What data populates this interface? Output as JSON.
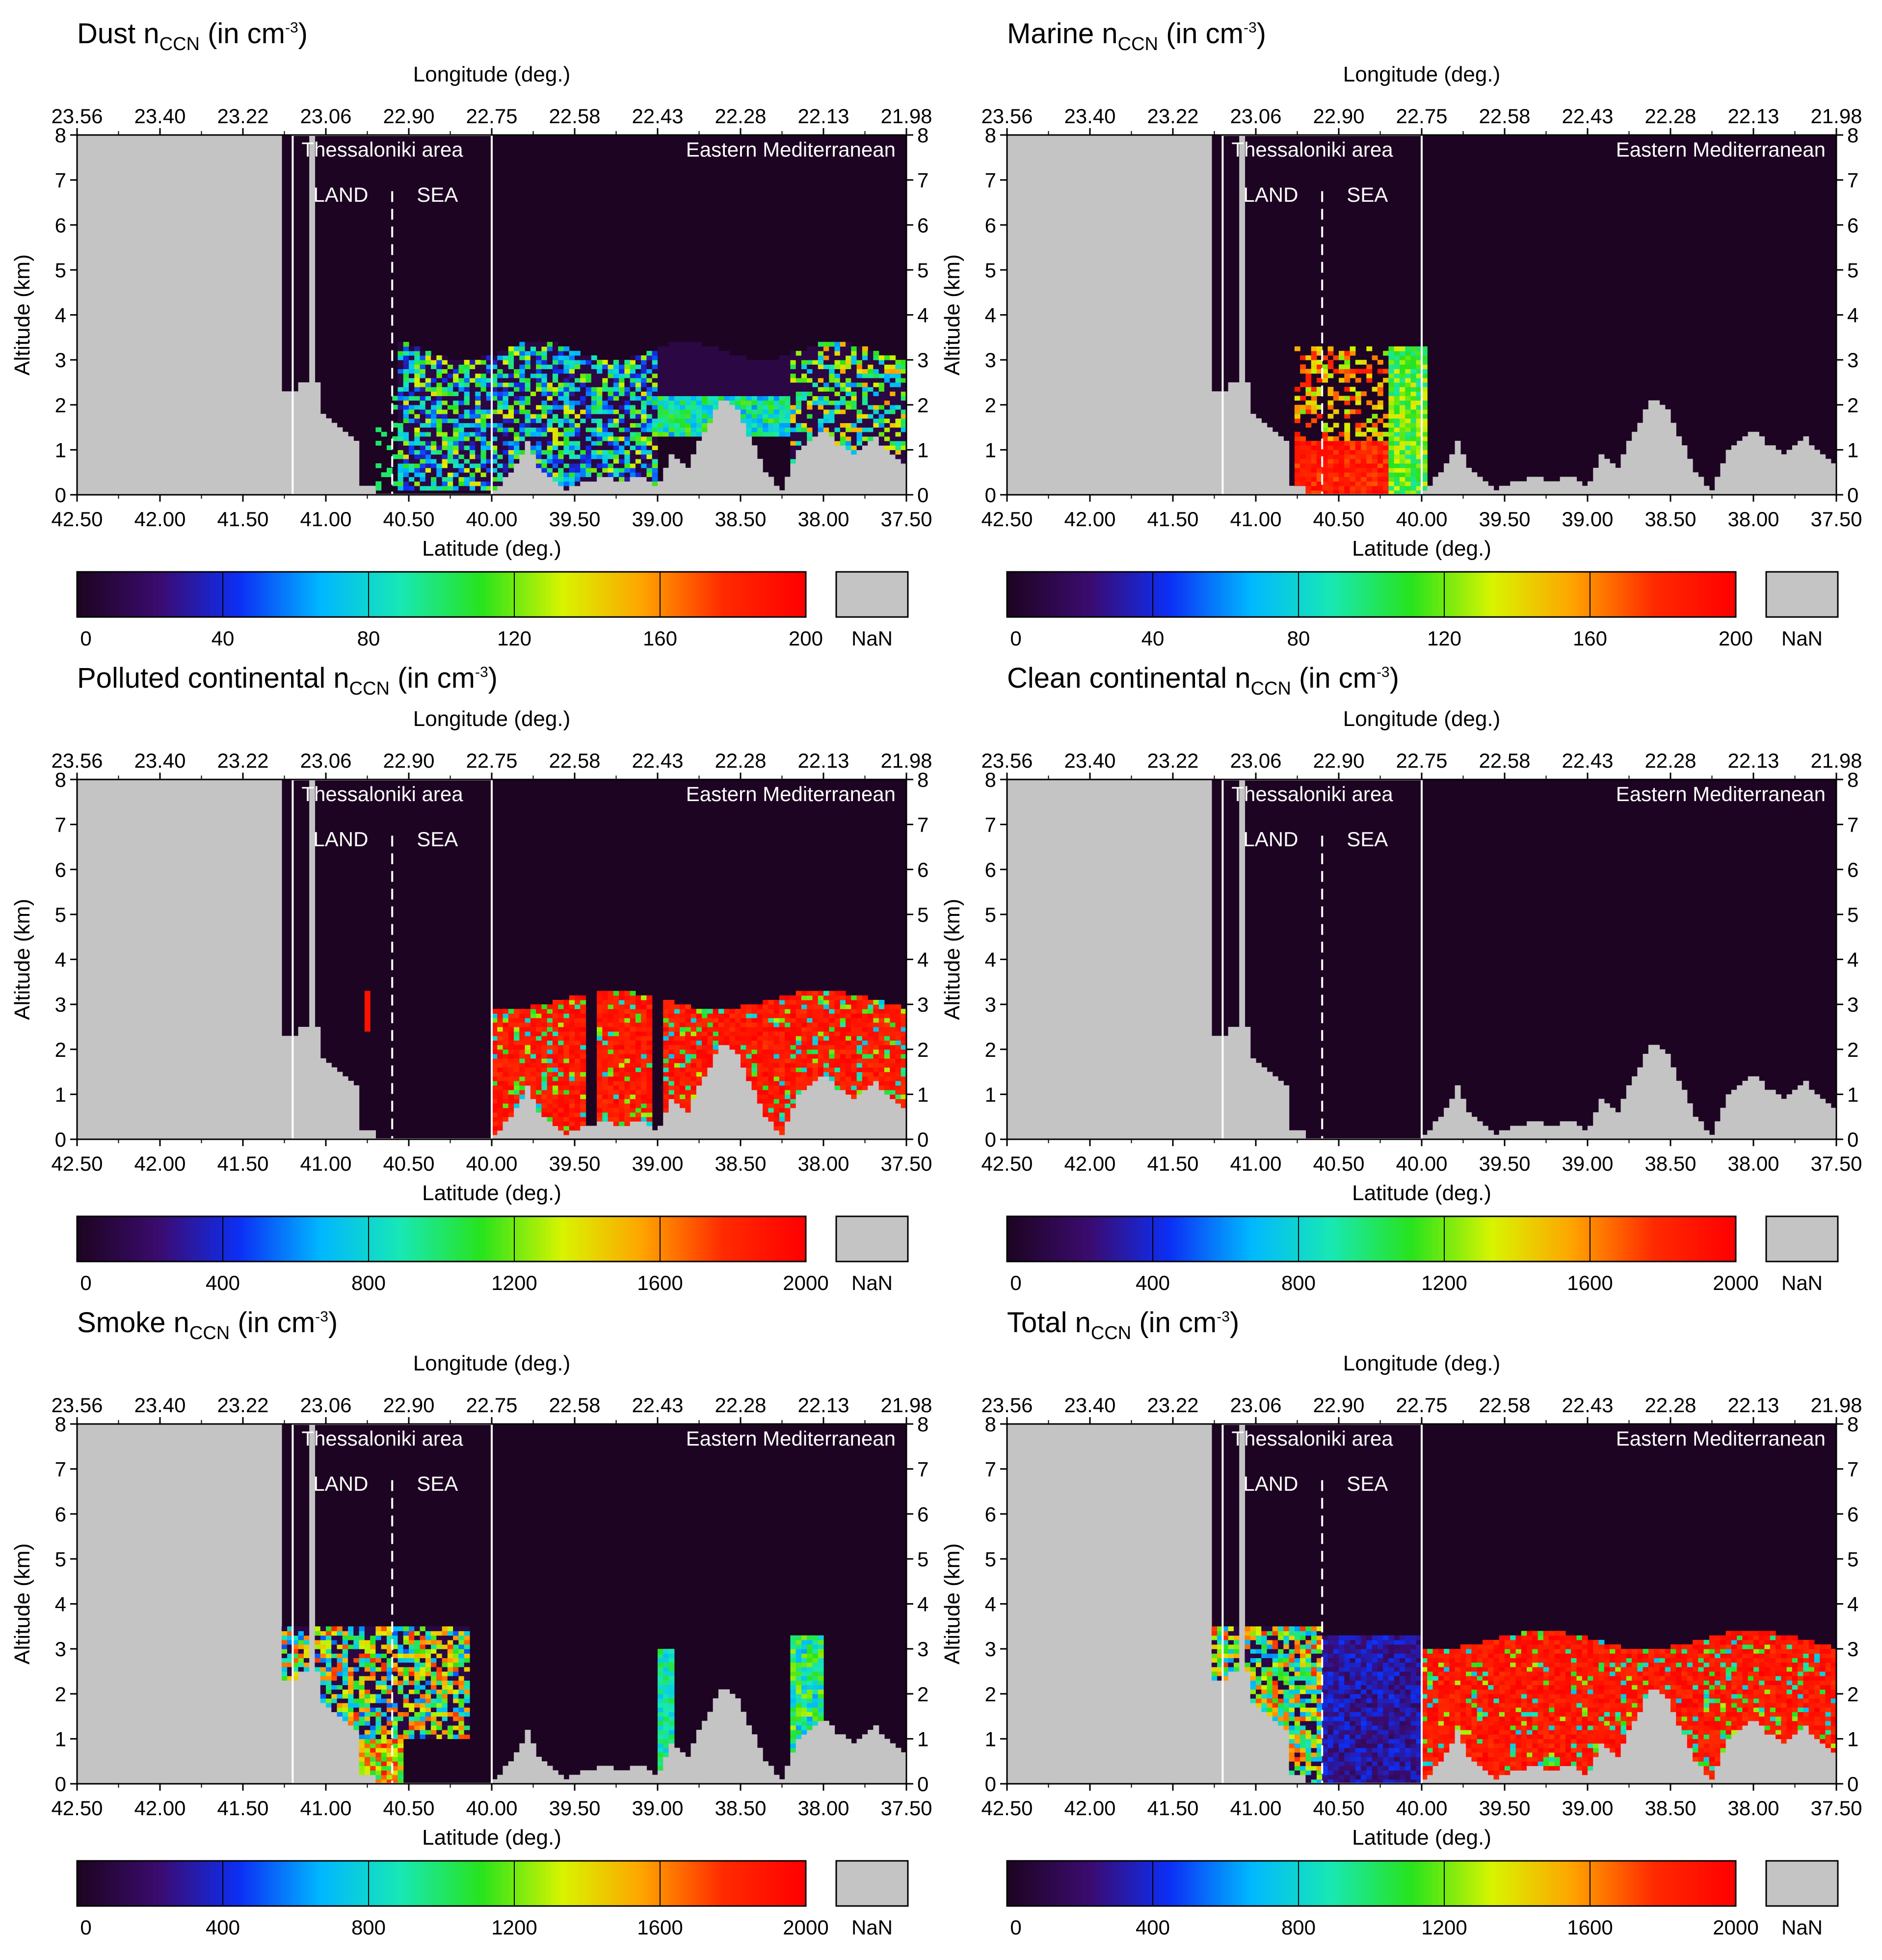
{
  "figure": {
    "common": {
      "top_axis_label": "Longitude (deg.)",
      "bottom_axis_label": "Latitude (deg.)",
      "y_axis_label": "Altitude (km)",
      "region_label": "Thessaloniki area",
      "land_label": "LAND",
      "sea_label": "SEA",
      "em_label": "Eastern Mediterranean",
      "nan_label": "NaN",
      "lon_ticks": [
        "23.56",
        "23.40",
        "23.22",
        "23.06",
        "22.90",
        "22.75",
        "22.58",
        "22.43",
        "22.28",
        "22.13",
        "21.98"
      ],
      "lat_ticks": [
        "42.50",
        "42.00",
        "41.50",
        "41.00",
        "40.50",
        "40.00",
        "39.50",
        "39.00",
        "38.50",
        "38.00",
        "37.50"
      ],
      "alt_ticks": [
        "0",
        "1",
        "2",
        "3",
        "4",
        "5",
        "6",
        "7",
        "8"
      ],
      "colors": {
        "background": "#1d0422",
        "nan": "#c4c4c4",
        "region_box": "#ffffff",
        "colormap": [
          "#1d0422",
          "#3b0b6e",
          "#0c2ff5",
          "#00b7ff",
          "#18e8b4",
          "#28e31c",
          "#d8f400",
          "#ffa300",
          "#ff2a00",
          "#ff0000"
        ]
      }
    },
    "chart_data": [
      {
        "type": "heatmap",
        "name": "dust",
        "title_main": "Dust n",
        "title_sub": "CCN",
        "title_unit": " (in cm",
        "title_sup": "-3",
        "title_end": ")",
        "xlabel": "Latitude (deg.)",
        "x2label": "Longitude (deg.)",
        "ylabel": "Altitude (km)",
        "xlim": [
          42.5,
          37.5
        ],
        "ylim": [
          0,
          8
        ],
        "colorbar": {
          "min": 0,
          "max": 200,
          "ticks": [
            "0",
            "40",
            "80",
            "120",
            "160",
            "200"
          ]
        }
      },
      {
        "type": "heatmap",
        "name": "marine",
        "title_main": "Marine n",
        "title_sub": "CCN",
        "title_unit": " (in cm",
        "title_sup": "-3",
        "title_end": ")",
        "xlabel": "Latitude (deg.)",
        "x2label": "Longitude (deg.)",
        "ylabel": "Altitude (km)",
        "xlim": [
          42.5,
          37.5
        ],
        "ylim": [
          0,
          8
        ],
        "colorbar": {
          "min": 0,
          "max": 200,
          "ticks": [
            "0",
            "40",
            "80",
            "120",
            "160",
            "200"
          ]
        }
      },
      {
        "type": "heatmap",
        "name": "polluted",
        "title_main": "Polluted continental n",
        "title_sub": "CCN",
        "title_unit": " (in cm",
        "title_sup": "-3",
        "title_end": ")",
        "xlabel": "Latitude (deg.)",
        "x2label": "Longitude (deg.)",
        "ylabel": "Altitude (km)",
        "xlim": [
          42.5,
          37.5
        ],
        "ylim": [
          0,
          8
        ],
        "colorbar": {
          "min": 0,
          "max": 2000,
          "ticks": [
            "0",
            "400",
            "800",
            "1200",
            "1600",
            "2000"
          ]
        }
      },
      {
        "type": "heatmap",
        "name": "clean",
        "title_main": "Clean continental n",
        "title_sub": "CCN",
        "title_unit": " (in cm",
        "title_sup": "-3",
        "title_end": ")",
        "xlabel": "Latitude (deg.)",
        "x2label": "Longitude (deg.)",
        "ylabel": "Altitude (km)",
        "xlim": [
          42.5,
          37.5
        ],
        "ylim": [
          0,
          8
        ],
        "colorbar": {
          "min": 0,
          "max": 2000,
          "ticks": [
            "0",
            "400",
            "800",
            "1200",
            "1600",
            "2000"
          ]
        }
      },
      {
        "type": "heatmap",
        "name": "smoke",
        "title_main": "Smoke n",
        "title_sub": "CCN",
        "title_unit": " (in cm",
        "title_sup": "-3",
        "title_end": ")",
        "xlabel": "Latitude (deg.)",
        "x2label": "Longitude (deg.)",
        "ylabel": "Altitude (km)",
        "xlim": [
          42.5,
          37.5
        ],
        "ylim": [
          0,
          8
        ],
        "colorbar": {
          "min": 0,
          "max": 2000,
          "ticks": [
            "0",
            "400",
            "800",
            "1200",
            "1600",
            "2000"
          ]
        }
      },
      {
        "type": "heatmap",
        "name": "total",
        "title_main": "Total n",
        "title_sub": "CCN",
        "title_unit": " (in cm",
        "title_sup": "-3",
        "title_end": ")",
        "xlabel": "Latitude (deg.)",
        "x2label": "Longitude (deg.)",
        "ylabel": "Altitude (km)",
        "xlim": [
          42.5,
          37.5
        ],
        "ylim": [
          0,
          8
        ],
        "colorbar": {
          "min": 0,
          "max": 2000,
          "ticks": [
            "0",
            "400",
            "800",
            "1200",
            "1600",
            "2000"
          ]
        }
      }
    ]
  }
}
